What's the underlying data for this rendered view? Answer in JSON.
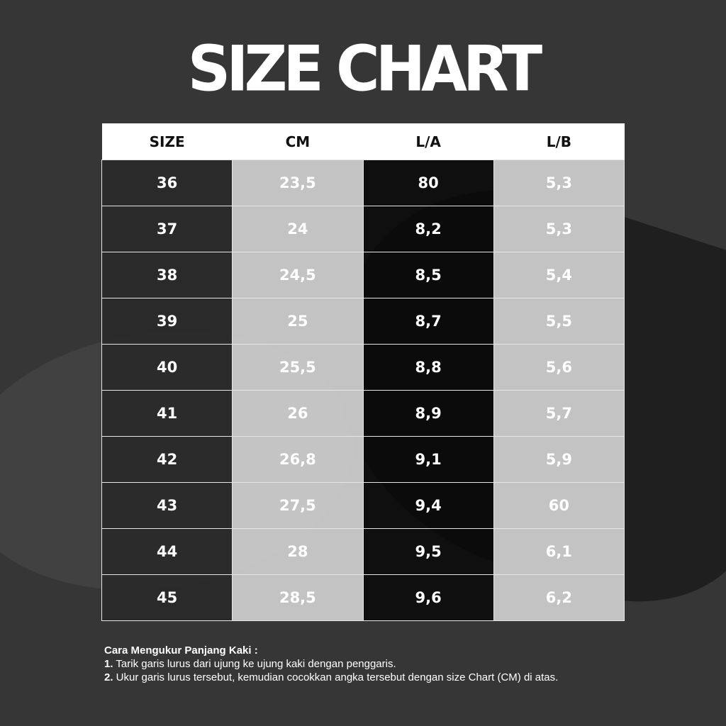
{
  "title": "SIZE CHART",
  "colors": {
    "background": "#363636",
    "header_bg": "#ffffff",
    "light_column": "#c8c8c8",
    "dark_column": "#282828",
    "text": "#ffffff"
  },
  "table": {
    "headers": [
      "SIZE",
      "CM",
      "L/A",
      "L/B"
    ],
    "rows": [
      [
        "36",
        "23,5",
        "80",
        "5,3"
      ],
      [
        "37",
        "24",
        "8,2",
        "5,3"
      ],
      [
        "38",
        "24,5",
        "8,5",
        "5,4"
      ],
      [
        "39",
        "25",
        "8,7",
        "5,5"
      ],
      [
        "40",
        "25,5",
        "8,8",
        "5,6"
      ],
      [
        "41",
        "26",
        "8,9",
        "5,7"
      ],
      [
        "42",
        "26,8",
        "9,1",
        "5,9"
      ],
      [
        "43",
        "27,5",
        "9,4",
        "60"
      ],
      [
        "44",
        "28",
        "9,5",
        "6,1"
      ],
      [
        "45",
        "28,5",
        "9,6",
        "6,2"
      ]
    ]
  },
  "notes": {
    "heading": "Cara Mengukur Panjang Kaki :",
    "steps": [
      {
        "num": "1.",
        "text": " Tarik garis lurus dari ujung ke ujung kaki dengan penggaris."
      },
      {
        "num": "2.",
        "text": " Ukur garis lurus tersebut, kemudian cocokkan angka tersebut dengan size Chart (CM) di atas."
      }
    ]
  }
}
